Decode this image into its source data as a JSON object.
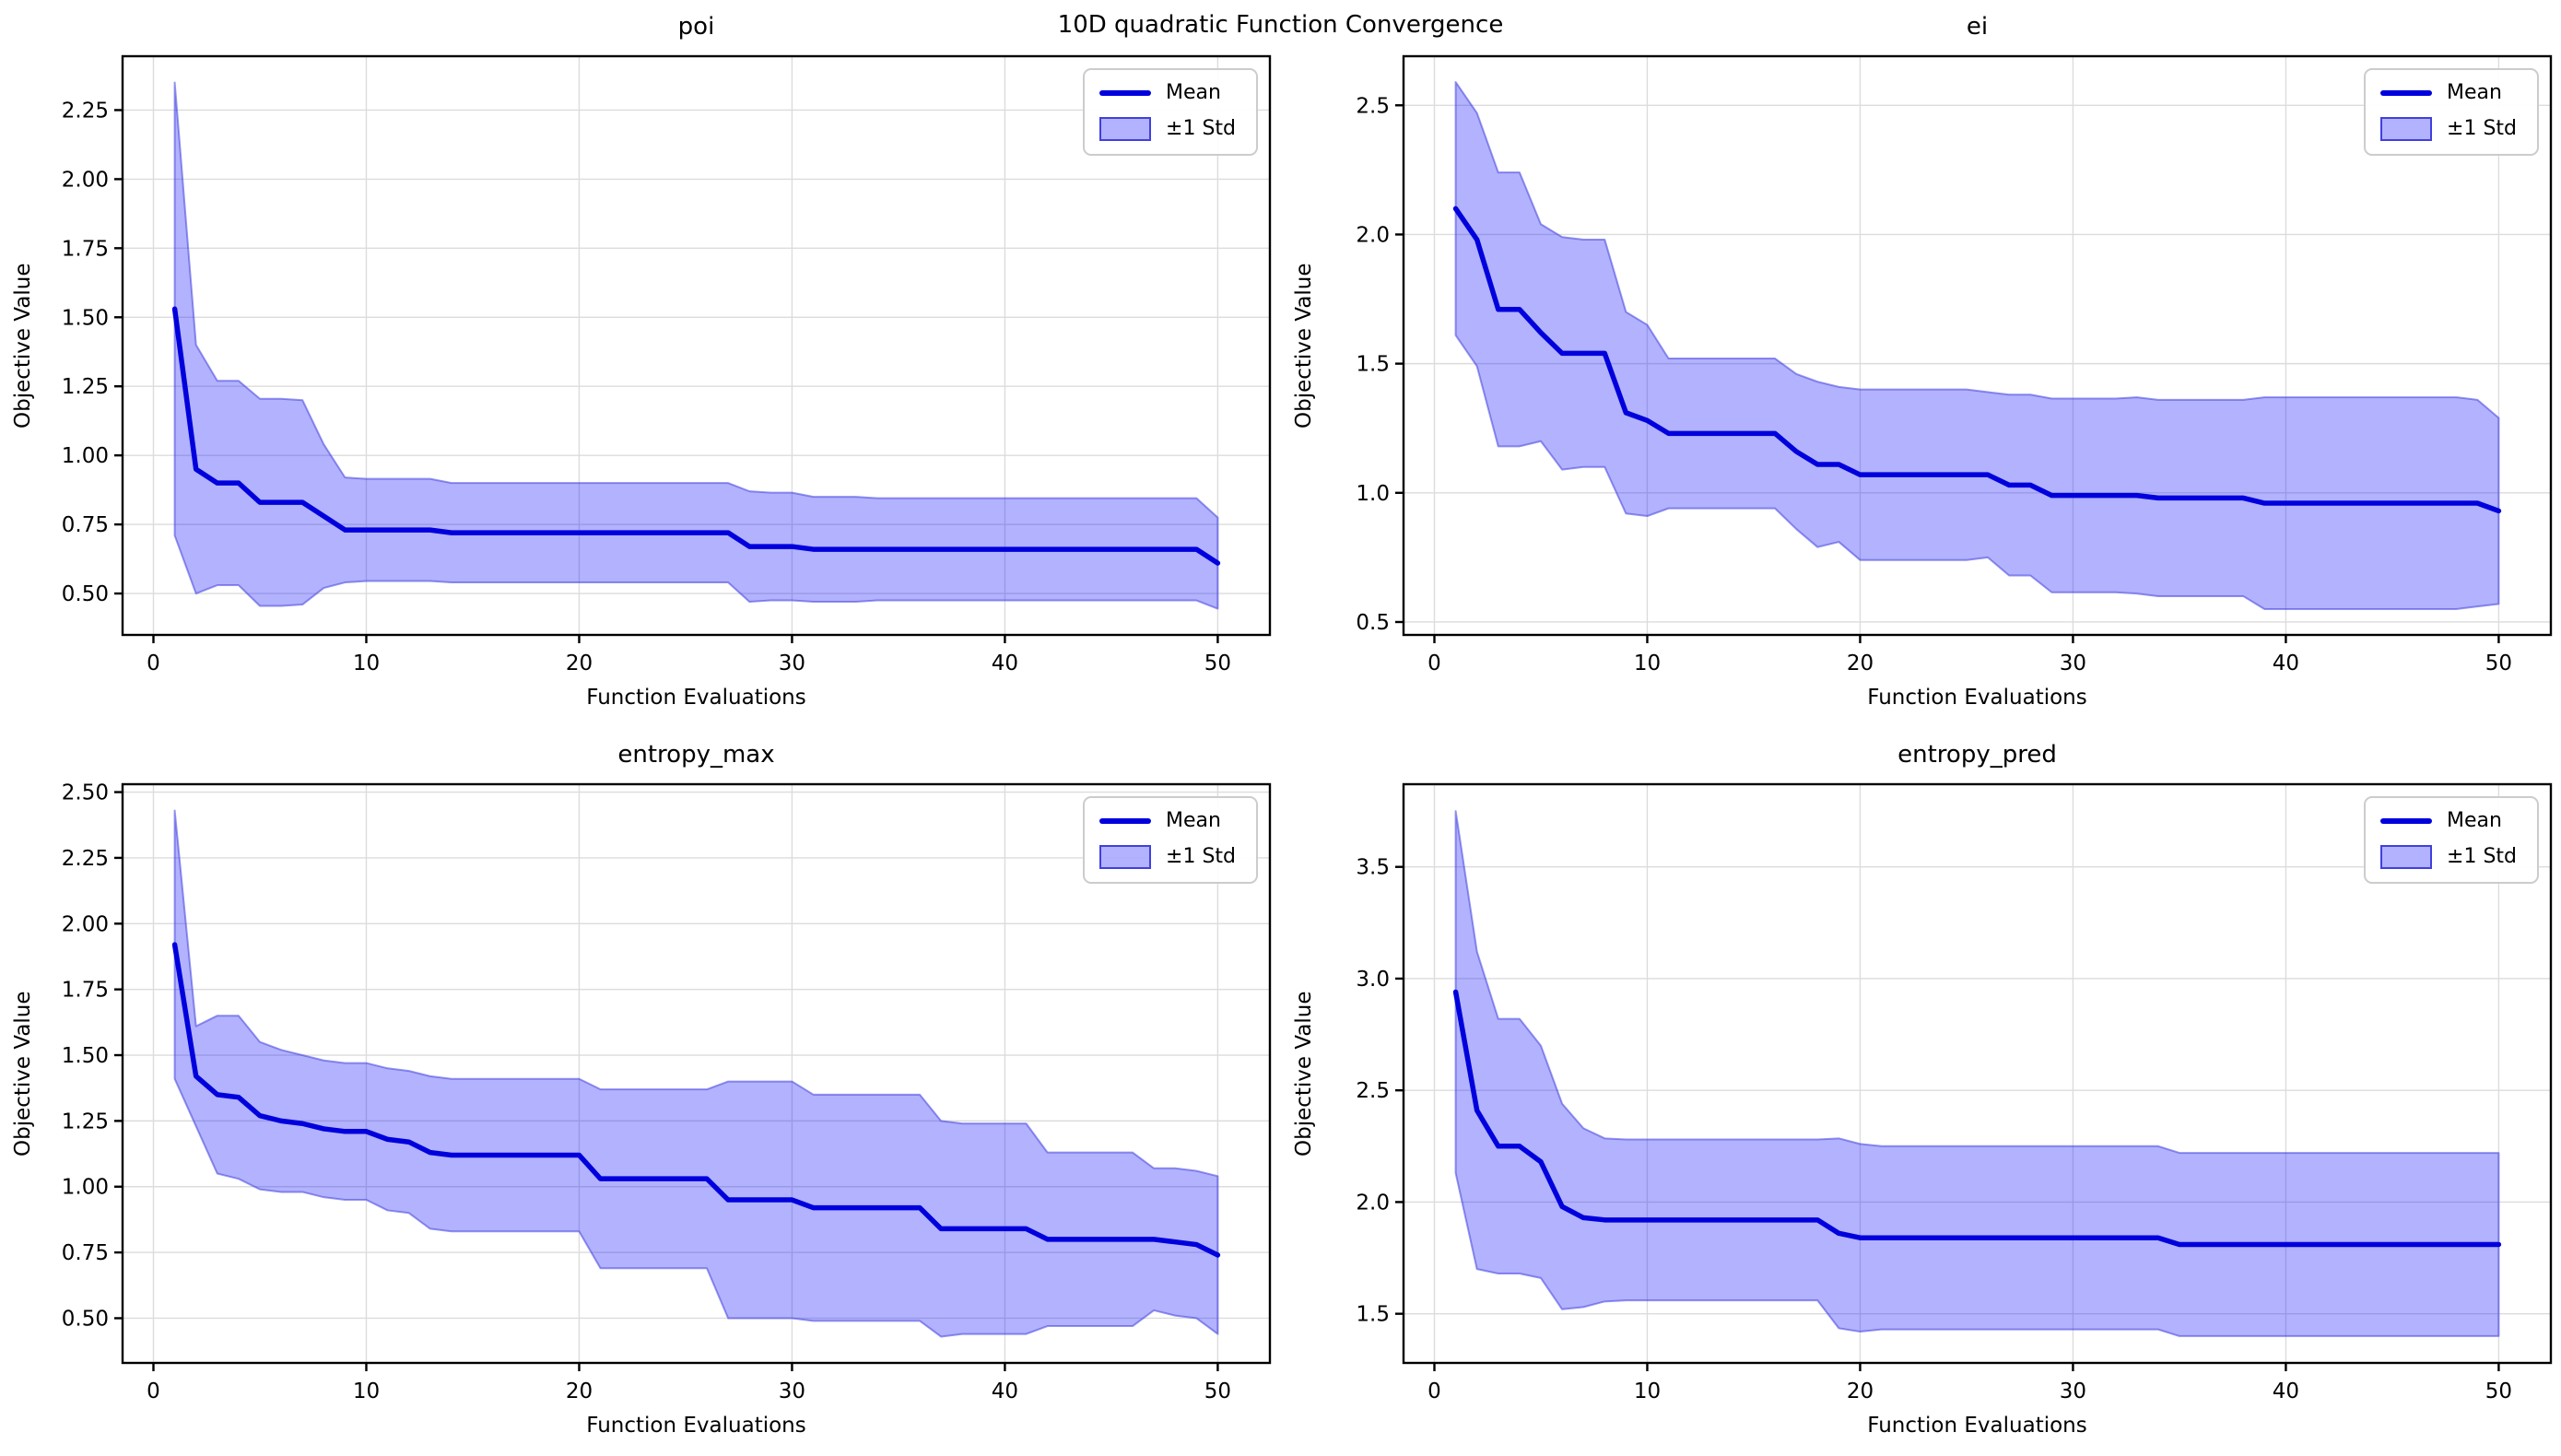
{
  "suptitle": "10D quadratic Function Convergence",
  "legend": {
    "mean_label": "Mean",
    "std_label": "±1 Std"
  },
  "colors": {
    "mean_line": "#0000DD",
    "band_fill": "#0000FF",
    "band_fill_alpha": 0.3,
    "band_edge": "#4040DF",
    "band_edge_alpha": 0.55,
    "grid": "#DCDCDC",
    "spine": "#000000",
    "text": "#000000"
  },
  "chart_data": [
    {
      "type": "line",
      "title": "poi",
      "xlabel": "Function Evaluations",
      "ylabel": "Objective Value",
      "legend_position": "upper right",
      "grid": true,
      "band": "mean ± 1 std",
      "xlim": [
        -1.45,
        52.45
      ],
      "ylim": [
        0.35,
        2.445
      ],
      "xticks": [
        "0",
        "10",
        "20",
        "30",
        "40",
        "50"
      ],
      "yticks": [
        "0.50",
        "0.75",
        "1.00",
        "1.25",
        "1.50",
        "1.75",
        "2.00",
        "2.25"
      ],
      "x": [
        1,
        2,
        3,
        4,
        5,
        6,
        7,
        8,
        9,
        10,
        11,
        12,
        13,
        14,
        15,
        16,
        17,
        18,
        19,
        20,
        21,
        22,
        23,
        24,
        25,
        26,
        27,
        28,
        29,
        30,
        31,
        32,
        33,
        34,
        35,
        36,
        37,
        38,
        39,
        40,
        41,
        42,
        43,
        44,
        45,
        46,
        47,
        48,
        49,
        50
      ],
      "mean": [
        1.53,
        0.95,
        0.9,
        0.9,
        0.83,
        0.83,
        0.83,
        0.78,
        0.73,
        0.73,
        0.73,
        0.73,
        0.73,
        0.72,
        0.72,
        0.72,
        0.72,
        0.72,
        0.72,
        0.72,
        0.72,
        0.72,
        0.72,
        0.72,
        0.72,
        0.72,
        0.72,
        0.67,
        0.67,
        0.67,
        0.66,
        0.66,
        0.66,
        0.66,
        0.66,
        0.66,
        0.66,
        0.66,
        0.66,
        0.66,
        0.66,
        0.66,
        0.66,
        0.66,
        0.66,
        0.66,
        0.66,
        0.66,
        0.66,
        0.61
      ],
      "std": [
        0.82,
        0.45,
        0.37,
        0.37,
        0.375,
        0.375,
        0.37,
        0.26,
        0.19,
        0.185,
        0.185,
        0.185,
        0.185,
        0.18,
        0.18,
        0.18,
        0.18,
        0.18,
        0.18,
        0.18,
        0.18,
        0.18,
        0.18,
        0.18,
        0.18,
        0.18,
        0.18,
        0.2,
        0.195,
        0.195,
        0.19,
        0.19,
        0.19,
        0.185,
        0.185,
        0.185,
        0.185,
        0.185,
        0.185,
        0.185,
        0.185,
        0.185,
        0.185,
        0.185,
        0.185,
        0.185,
        0.185,
        0.185,
        0.185,
        0.165
      ]
    },
    {
      "type": "line",
      "title": "ei",
      "xlabel": "Function Evaluations",
      "ylabel": "Objective Value",
      "legend_position": "upper right",
      "grid": true,
      "band": "mean ± 1 std",
      "xlim": [
        -1.45,
        52.45
      ],
      "ylim": [
        0.45,
        2.69
      ],
      "xticks": [
        "0",
        "10",
        "20",
        "30",
        "40",
        "50"
      ],
      "yticks": [
        "0.5",
        "1.0",
        "1.5",
        "2.0",
        "2.5"
      ],
      "x": [
        1,
        2,
        3,
        4,
        5,
        6,
        7,
        8,
        9,
        10,
        11,
        12,
        13,
        14,
        15,
        16,
        17,
        18,
        19,
        20,
        21,
        22,
        23,
        24,
        25,
        26,
        27,
        28,
        29,
        30,
        31,
        32,
        33,
        34,
        35,
        36,
        37,
        38,
        39,
        40,
        41,
        42,
        43,
        44,
        45,
        46,
        47,
        48,
        49,
        50
      ],
      "mean": [
        2.1,
        1.98,
        1.71,
        1.71,
        1.62,
        1.54,
        1.54,
        1.54,
        1.31,
        1.28,
        1.23,
        1.23,
        1.23,
        1.23,
        1.23,
        1.23,
        1.16,
        1.11,
        1.11,
        1.07,
        1.07,
        1.07,
        1.07,
        1.07,
        1.07,
        1.07,
        1.03,
        1.03,
        0.99,
        0.99,
        0.99,
        0.99,
        0.99,
        0.98,
        0.98,
        0.98,
        0.98,
        0.98,
        0.96,
        0.96,
        0.96,
        0.96,
        0.96,
        0.96,
        0.96,
        0.96,
        0.96,
        0.96,
        0.96,
        0.93
      ],
      "std": [
        0.49,
        0.49,
        0.53,
        0.53,
        0.42,
        0.45,
        0.44,
        0.44,
        0.39,
        0.37,
        0.29,
        0.29,
        0.29,
        0.29,
        0.29,
        0.29,
        0.3,
        0.32,
        0.3,
        0.33,
        0.33,
        0.33,
        0.33,
        0.33,
        0.33,
        0.32,
        0.35,
        0.35,
        0.375,
        0.375,
        0.375,
        0.375,
        0.38,
        0.38,
        0.38,
        0.38,
        0.38,
        0.38,
        0.41,
        0.41,
        0.41,
        0.41,
        0.41,
        0.41,
        0.41,
        0.41,
        0.41,
        0.41,
        0.4,
        0.36
      ]
    },
    {
      "type": "line",
      "title": "entropy_max",
      "xlabel": "Function Evaluations",
      "ylabel": "Objective Value",
      "legend_position": "upper right",
      "grid": true,
      "band": "mean ± 1 std",
      "xlim": [
        -1.45,
        52.45
      ],
      "ylim": [
        0.33,
        2.53
      ],
      "xticks": [
        "0",
        "10",
        "20",
        "30",
        "40",
        "50"
      ],
      "yticks": [
        "0.50",
        "0.75",
        "1.00",
        "1.25",
        "1.50",
        "1.75",
        "2.00",
        "2.25",
        "2.50"
      ],
      "x": [
        1,
        2,
        3,
        4,
        5,
        6,
        7,
        8,
        9,
        10,
        11,
        12,
        13,
        14,
        15,
        16,
        17,
        18,
        19,
        20,
        21,
        22,
        23,
        24,
        25,
        26,
        27,
        28,
        29,
        30,
        31,
        32,
        33,
        34,
        35,
        36,
        37,
        38,
        39,
        40,
        41,
        42,
        43,
        44,
        45,
        46,
        47,
        48,
        49,
        50
      ],
      "mean": [
        1.92,
        1.42,
        1.35,
        1.34,
        1.27,
        1.25,
        1.24,
        1.22,
        1.21,
        1.21,
        1.18,
        1.17,
        1.13,
        1.12,
        1.12,
        1.12,
        1.12,
        1.12,
        1.12,
        1.12,
        1.03,
        1.03,
        1.03,
        1.03,
        1.03,
        1.03,
        0.95,
        0.95,
        0.95,
        0.95,
        0.92,
        0.92,
        0.92,
        0.92,
        0.92,
        0.92,
        0.84,
        0.84,
        0.84,
        0.84,
        0.84,
        0.8,
        0.8,
        0.8,
        0.8,
        0.8,
        0.8,
        0.79,
        0.78,
        0.74
      ],
      "std": [
        0.51,
        0.19,
        0.3,
        0.31,
        0.28,
        0.27,
        0.26,
        0.26,
        0.26,
        0.26,
        0.27,
        0.27,
        0.29,
        0.29,
        0.29,
        0.29,
        0.29,
        0.29,
        0.29,
        0.29,
        0.34,
        0.34,
        0.34,
        0.34,
        0.34,
        0.34,
        0.45,
        0.45,
        0.45,
        0.45,
        0.43,
        0.43,
        0.43,
        0.43,
        0.43,
        0.43,
        0.41,
        0.4,
        0.4,
        0.4,
        0.4,
        0.33,
        0.33,
        0.33,
        0.33,
        0.33,
        0.27,
        0.28,
        0.28,
        0.3
      ]
    },
    {
      "type": "line",
      "title": "entropy_pred",
      "xlabel": "Function Evaluations",
      "ylabel": "Objective Value",
      "legend_position": "upper right",
      "grid": true,
      "band": "mean ± 1 std",
      "xlim": [
        -1.45,
        52.45
      ],
      "ylim": [
        1.28,
        3.87
      ],
      "xticks": [
        "0",
        "10",
        "20",
        "30",
        "40",
        "50"
      ],
      "yticks": [
        "1.5",
        "2.0",
        "2.5",
        "3.0",
        "3.5"
      ],
      "x": [
        1,
        2,
        3,
        4,
        5,
        6,
        7,
        8,
        9,
        10,
        11,
        12,
        13,
        14,
        15,
        16,
        17,
        18,
        19,
        20,
        21,
        22,
        23,
        24,
        25,
        26,
        27,
        28,
        29,
        30,
        31,
        32,
        33,
        34,
        35,
        36,
        37,
        38,
        39,
        40,
        41,
        42,
        43,
        44,
        45,
        46,
        47,
        48,
        49,
        50
      ],
      "mean": [
        2.94,
        2.41,
        2.25,
        2.25,
        2.18,
        1.98,
        1.93,
        1.92,
        1.92,
        1.92,
        1.92,
        1.92,
        1.92,
        1.92,
        1.92,
        1.92,
        1.92,
        1.92,
        1.86,
        1.84,
        1.84,
        1.84,
        1.84,
        1.84,
        1.84,
        1.84,
        1.84,
        1.84,
        1.84,
        1.84,
        1.84,
        1.84,
        1.84,
        1.84,
        1.81,
        1.81,
        1.81,
        1.81,
        1.81,
        1.81,
        1.81,
        1.81,
        1.81,
        1.81,
        1.81,
        1.81,
        1.81,
        1.81,
        1.81,
        1.81
      ],
      "std": [
        0.81,
        0.71,
        0.57,
        0.57,
        0.52,
        0.46,
        0.4,
        0.365,
        0.36,
        0.36,
        0.36,
        0.36,
        0.36,
        0.36,
        0.36,
        0.36,
        0.36,
        0.36,
        0.425,
        0.42,
        0.41,
        0.41,
        0.41,
        0.41,
        0.41,
        0.41,
        0.41,
        0.41,
        0.41,
        0.41,
        0.41,
        0.41,
        0.41,
        0.41,
        0.41,
        0.41,
        0.41,
        0.41,
        0.41,
        0.41,
        0.41,
        0.41,
        0.41,
        0.41,
        0.41,
        0.41,
        0.41,
        0.41,
        0.41,
        0.41
      ]
    }
  ]
}
